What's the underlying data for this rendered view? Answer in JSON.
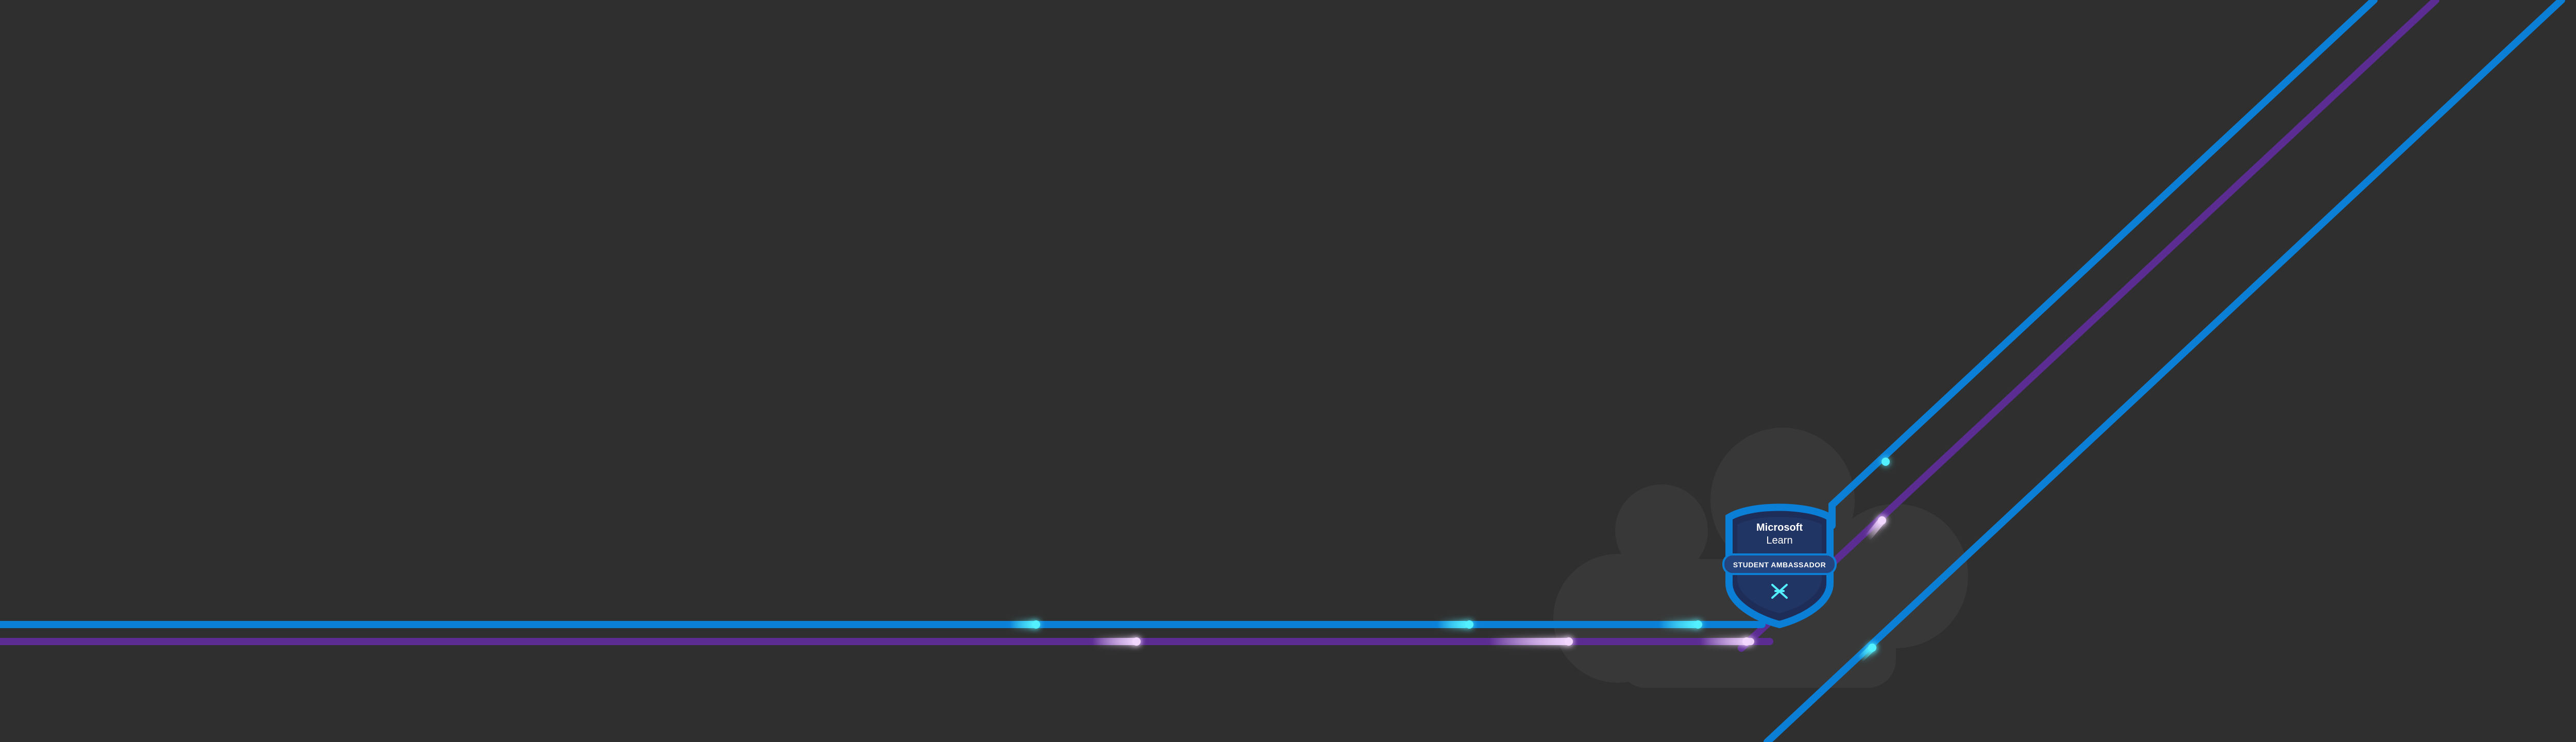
{
  "badge": {
    "brand": "Microsoft",
    "product": "Learn",
    "ribbon": "STUDENT AMBASSADOR"
  },
  "colors": {
    "background": "#2f2f2f",
    "cloud": "#383838",
    "blue_line": "#0b7fd6",
    "purple_line": "#5b2c92",
    "glow_cyan": "#53f0ff",
    "glow_lilac": "#f3d7ff",
    "badge_fill": "#1d2d58",
    "badge_ribbon": "#25437c",
    "badge_border": "#0b7fd6"
  },
  "icons": {
    "badge": "shield-badge-icon",
    "badge_mark": "ambassador-x-icon"
  }
}
